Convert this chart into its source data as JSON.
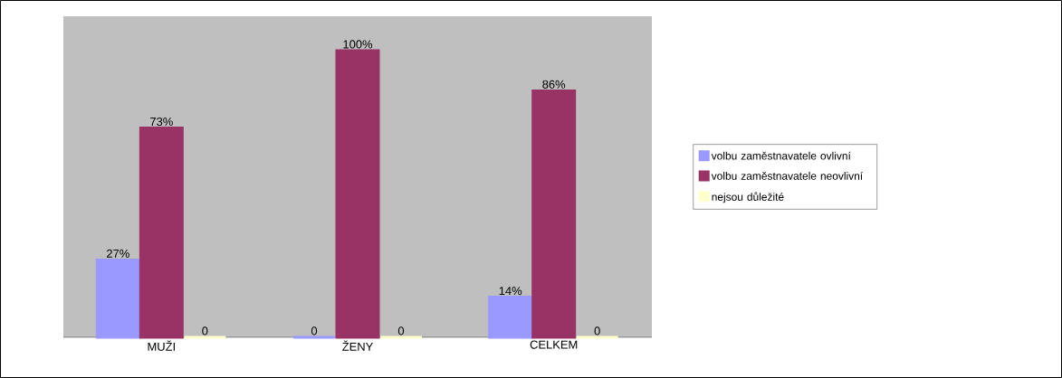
{
  "chart_data": {
    "type": "bar",
    "categories": [
      "MUŽI",
      "ŽENY",
      "CELKEM"
    ],
    "series": [
      {
        "name": "volbu zaměstnavatele ovlivní",
        "color": "#9999ff",
        "values": [
          27,
          0,
          14
        ],
        "value_labels": [
          "27%",
          "0",
          "14%"
        ]
      },
      {
        "name": "volbu zaměstnavatele neovlivní",
        "color": "#993366",
        "values": [
          73,
          100,
          86
        ],
        "value_labels": [
          "73%",
          "100%",
          "86%"
        ]
      },
      {
        "name": "nejsou důležité",
        "color": "#ffffcc",
        "values": [
          0,
          0,
          0
        ],
        "value_labels": [
          "0",
          "0",
          "0"
        ]
      }
    ],
    "legend": "right"
  }
}
